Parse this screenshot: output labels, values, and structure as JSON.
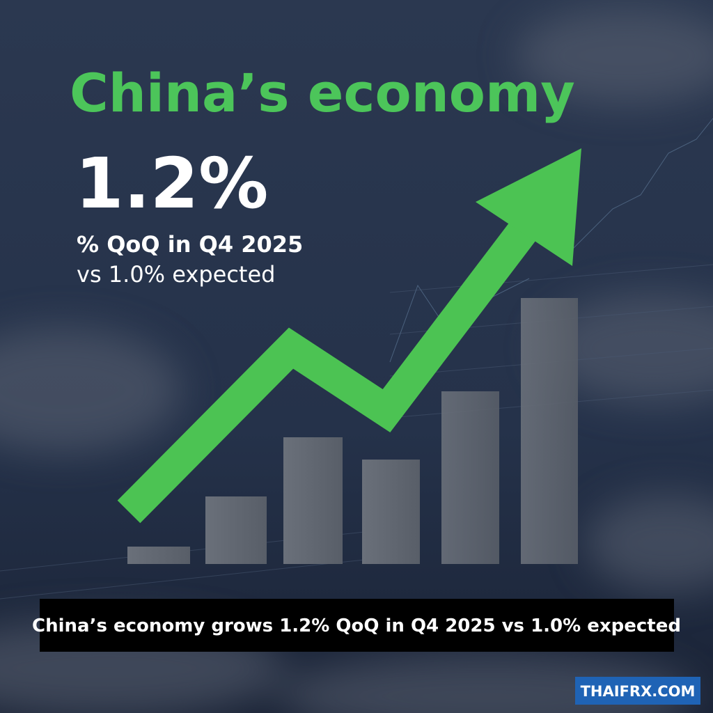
{
  "headline": "China’s economy",
  "figure": "1.2%",
  "detail_lines": [
    "% QoQ in Q4 2025",
    "vs 1.0% expected"
  ],
  "caption": "China’s economy grows 1.2% QoQ in Q4 2025 vs 1.0% expected",
  "watermark": "THAIFRX.COM"
}
